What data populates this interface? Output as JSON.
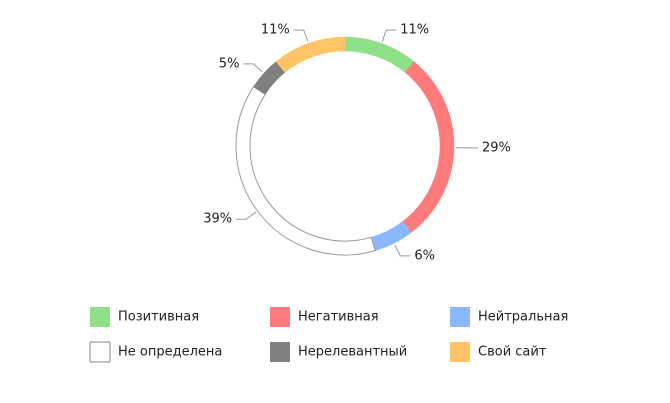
{
  "chart_data": {
    "type": "pie",
    "categories": [
      "Позитивная",
      "Негативная",
      "Нейтральная",
      "Не определена",
      "Нерелевантный",
      "Свой сайт"
    ],
    "values": [
      11,
      29,
      6,
      39,
      5,
      11
    ],
    "value_labels": [
      "11%",
      "29%",
      "6%",
      "39%",
      "5%",
      "11%"
    ],
    "colors": [
      "#90e08a",
      "#ff7b7b",
      "#8ab8ff",
      "#ffffff",
      "#808080",
      "#ffc466"
    ]
  }
}
